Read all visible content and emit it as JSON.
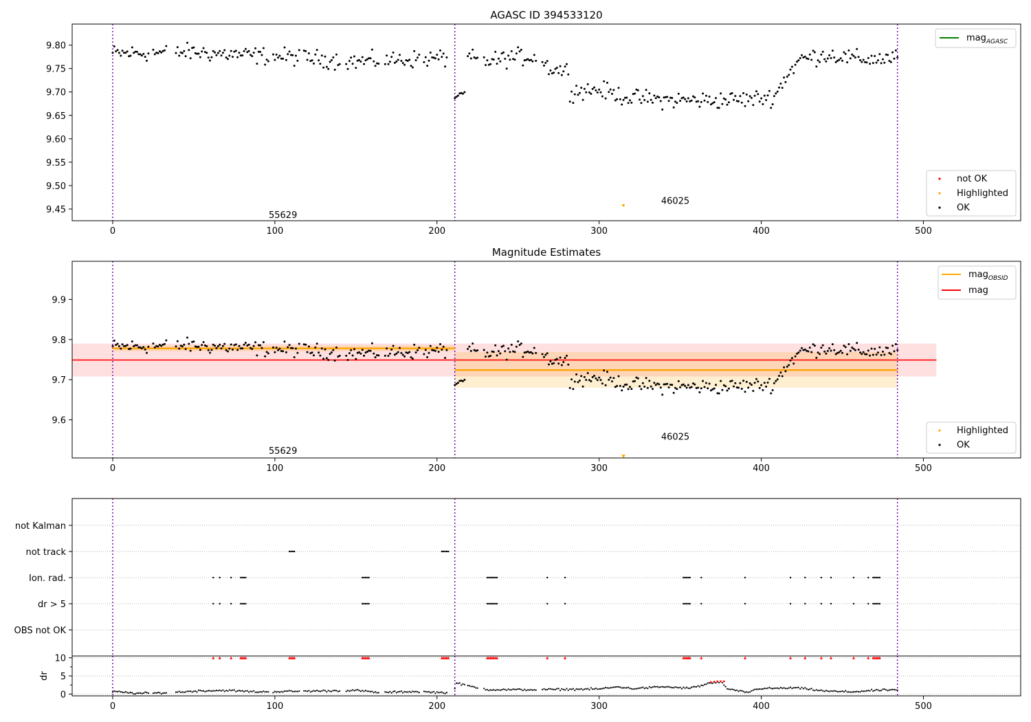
{
  "chart_data": [
    {
      "type": "scatter",
      "title": "AGASC ID 394533120",
      "xlim": [
        -25,
        560
      ],
      "ylim": [
        9.425,
        9.845
      ],
      "xticks": [
        0,
        100,
        200,
        300,
        400,
        500
      ],
      "yticks": [
        9.45,
        9.5,
        9.55,
        9.6,
        9.65,
        9.7,
        9.75,
        9.8
      ],
      "yticks_text": [
        "9.45",
        "9.50",
        "9.55",
        "9.60",
        "9.65",
        "9.70",
        "9.75",
        "9.80"
      ],
      "obs_boundaries": [
        0,
        211,
        484
      ],
      "obs_labels": [
        {
          "x": 105,
          "y": 9.437,
          "text": "55629"
        },
        {
          "x": 347,
          "y": 9.467,
          "text": "46025"
        }
      ],
      "highlighted_points": [
        {
          "x": 315,
          "y": 9.458
        }
      ],
      "legend_top": {
        "position": "top-right",
        "entries": [
          {
            "name": "mag",
            "subscript": "AGASC",
            "color": "#008000"
          }
        ]
      },
      "legend_bottom": {
        "position": "bottom-right",
        "entries": [
          {
            "name": "not OK",
            "color": "#ff0000"
          },
          {
            "name": "Highlighted",
            "color": "#ffa500"
          },
          {
            "name": "OK",
            "color": "#000000"
          }
        ]
      },
      "series_trend": [
        {
          "x": 0,
          "y": 9.782
        },
        {
          "x": 50,
          "y": 9.785
        },
        {
          "x": 85,
          "y": 9.778
        },
        {
          "x": 110,
          "y": 9.775
        },
        {
          "x": 150,
          "y": 9.765
        },
        {
          "x": 200,
          "y": 9.772
        },
        {
          "x": 210,
          "y": 9.772
        },
        {
          "x": 211,
          "y": 9.686
        },
        {
          "x": 217,
          "y": 9.7
        },
        {
          "x": 218,
          "y": 9.775
        },
        {
          "x": 230,
          "y": 9.765
        },
        {
          "x": 250,
          "y": 9.775
        },
        {
          "x": 262,
          "y": 9.775
        },
        {
          "x": 270,
          "y": 9.75
        },
        {
          "x": 281,
          "y": 9.745
        },
        {
          "x": 282,
          "y": 9.702
        },
        {
          "x": 300,
          "y": 9.705
        },
        {
          "x": 318,
          "y": 9.688
        },
        {
          "x": 340,
          "y": 9.683
        },
        {
          "x": 370,
          "y": 9.682
        },
        {
          "x": 395,
          "y": 9.685
        },
        {
          "x": 408,
          "y": 9.69
        },
        {
          "x": 416,
          "y": 9.737
        },
        {
          "x": 424,
          "y": 9.77
        },
        {
          "x": 440,
          "y": 9.78
        },
        {
          "x": 460,
          "y": 9.77
        },
        {
          "x": 484,
          "y": 9.772
        }
      ]
    },
    {
      "type": "scatter",
      "title": "Magnitude Estimates",
      "xlim": [
        -25,
        560
      ],
      "ylim": [
        9.505,
        9.995
      ],
      "xticks": [
        0,
        100,
        200,
        300,
        400,
        500
      ],
      "yticks": [
        9.6,
        9.7,
        9.8,
        9.9
      ],
      "yticks_text": [
        "9.6",
        "9.7",
        "9.8",
        "9.9"
      ],
      "obs_boundaries": [
        0,
        211,
        484
      ],
      "obs_labels": [
        {
          "x": 105,
          "y": 9.522,
          "text": "55629"
        },
        {
          "x": 347,
          "y": 9.557,
          "text": "46025"
        }
      ],
      "mag_line": {
        "x": [
          -25,
          508
        ],
        "value": 9.749,
        "band": [
          9.708,
          9.79
        ]
      },
      "obsid_mag": [
        {
          "x": [
            0,
            211
          ],
          "value": 9.778,
          "band": [
            9.771,
            9.785
          ]
        },
        {
          "x": [
            211,
            484
          ],
          "value": 9.724,
          "band": [
            9.68,
            9.769
          ]
        }
      ],
      "highlighted_points": [
        {
          "x": 315,
          "y": 9.508
        }
      ],
      "legend_top": {
        "position": "top-right",
        "entries": [
          {
            "name": "mag",
            "subscript": "OBSID",
            "color": "#ffa500"
          },
          {
            "name": "mag",
            "color": "#ff0000"
          }
        ]
      },
      "legend_bottom": {
        "position": "bottom-right",
        "entries": [
          {
            "name": "Highlighted",
            "color": "#ffa500"
          },
          {
            "name": "OK",
            "color": "#000000"
          }
        ]
      }
    },
    {
      "type": "scatter",
      "title": "",
      "xlim": [
        -25,
        560
      ],
      "xticks": [
        0,
        100,
        200,
        300,
        400,
        500
      ],
      "obs_boundaries": [
        0,
        211,
        484
      ],
      "flag_rows": [
        "not Kalman",
        "not track",
        "Ion. rad.",
        "dr > 5",
        "OBS not OK"
      ],
      "flags": {
        "not track": [
          [
            109,
            112
          ],
          [
            203,
            207
          ]
        ],
        "Ion. rad.": [
          [
            62,
            62
          ],
          [
            66,
            66
          ],
          [
            73,
            73
          ],
          [
            79,
            82
          ],
          [
            154,
            158
          ],
          [
            231,
            237
          ],
          [
            268,
            268
          ],
          [
            279,
            279
          ],
          [
            352,
            356
          ],
          [
            363,
            363
          ],
          [
            390,
            390
          ],
          [
            418,
            418
          ],
          [
            427,
            427
          ],
          [
            437,
            437
          ],
          [
            443,
            443
          ],
          [
            457,
            457
          ],
          [
            466,
            466
          ],
          [
            469,
            473
          ]
        ],
        "dr > 5": [
          [
            62,
            62
          ],
          [
            66,
            66
          ],
          [
            73,
            73
          ],
          [
            79,
            82
          ],
          [
            154,
            158
          ],
          [
            231,
            237
          ],
          [
            268,
            268
          ],
          [
            279,
            279
          ],
          [
            352,
            356
          ],
          [
            363,
            363
          ],
          [
            390,
            390
          ],
          [
            418,
            418
          ],
          [
            427,
            427
          ],
          [
            437,
            437
          ],
          [
            443,
            443
          ],
          [
            457,
            457
          ],
          [
            466,
            466
          ],
          [
            469,
            473
          ]
        ]
      },
      "dr_ylabel": "dr",
      "dr_ylim": [
        -0.5,
        10.5
      ],
      "dr_yticks": [
        0,
        5,
        10
      ],
      "dr_trend": [
        {
          "x": 0,
          "y": 0.7
        },
        {
          "x": 15,
          "y": 0.2
        },
        {
          "x": 30,
          "y": 0.3
        },
        {
          "x": 55,
          "y": 0.9
        },
        {
          "x": 70,
          "y": 1.0
        },
        {
          "x": 90,
          "y": 0.6
        },
        {
          "x": 120,
          "y": 0.8
        },
        {
          "x": 150,
          "y": 1.0
        },
        {
          "x": 165,
          "y": 0.4
        },
        {
          "x": 185,
          "y": 0.7
        },
        {
          "x": 205,
          "y": 0.4
        },
        {
          "x": 210,
          "y": 0.2
        },
        {
          "x": 212,
          "y": 3.0
        },
        {
          "x": 225,
          "y": 1.7
        },
        {
          "x": 232,
          "y": 1.2
        },
        {
          "x": 260,
          "y": 1.2
        },
        {
          "x": 300,
          "y": 1.4
        },
        {
          "x": 312,
          "y": 2.0
        },
        {
          "x": 320,
          "y": 1.5
        },
        {
          "x": 340,
          "y": 2.0
        },
        {
          "x": 355,
          "y": 1.6
        },
        {
          "x": 362,
          "y": 2.2
        },
        {
          "x": 368,
          "y": 3.0
        },
        {
          "x": 375,
          "y": 3.3
        },
        {
          "x": 380,
          "y": 1.2
        },
        {
          "x": 392,
          "y": 0.5
        },
        {
          "x": 398,
          "y": 1.5
        },
        {
          "x": 412,
          "y": 1.6
        },
        {
          "x": 422,
          "y": 1.7
        },
        {
          "x": 440,
          "y": 0.8
        },
        {
          "x": 455,
          "y": 0.6
        },
        {
          "x": 470,
          "y": 1.0
        },
        {
          "x": 484,
          "y": 1.2
        }
      ],
      "dr_red_points": [
        {
          "x": 369,
          "y": 3.3
        },
        {
          "x": 371,
          "y": 3.4
        },
        {
          "x": 373,
          "y": 3.5
        },
        {
          "x": 375,
          "y": 3.5
        },
        {
          "x": 377,
          "y": 3.5
        }
      ]
    }
  ]
}
